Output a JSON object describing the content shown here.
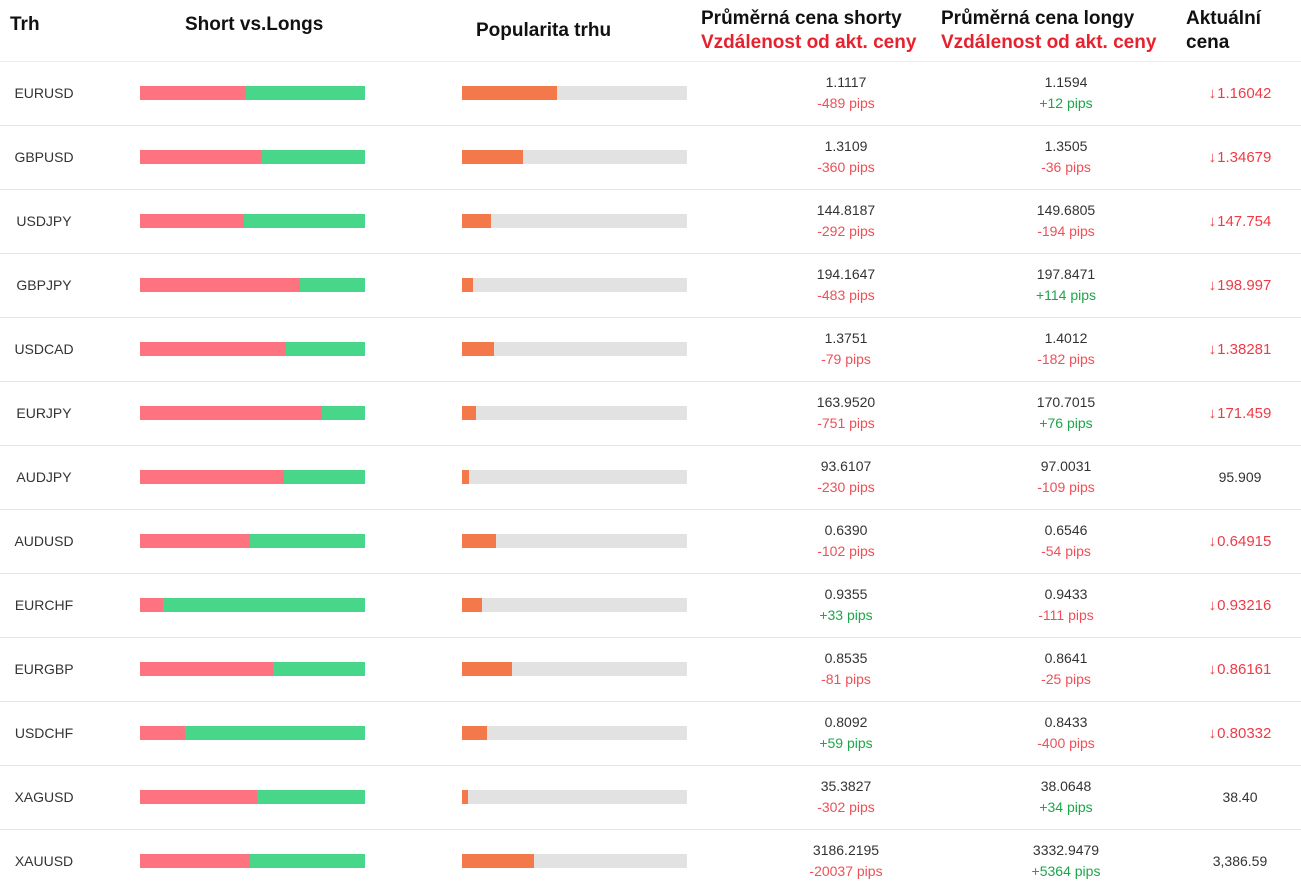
{
  "header": {
    "market": "Trh",
    "short_vs_longs": "Short vs.Longs",
    "popularity": "Popularita trhu",
    "avg_short": "Průměrná cena shorty",
    "avg_short_sub": "Vzdálenost od akt. ceny",
    "avg_long": "Průměrná cena longy",
    "avg_long_sub": "Vzdálenost od akt. ceny",
    "current_price_1": "Aktuální",
    "current_price_2": "cena"
  },
  "colors": {
    "short": "#fd737f",
    "long": "#48d78a",
    "popularity": "#f3794b",
    "popularity_track": "#e2e2e2",
    "negative": "#ef4f57",
    "positive": "#1ca64a",
    "price_down": "#ef3b46"
  },
  "rows": [
    {
      "symbol": "EURUSD",
      "short_ratio": 0.47,
      "popularity": 0.42,
      "avg_short": "1.1117",
      "short_pips": "-489 pips",
      "short_pips_sign": "neg",
      "avg_long": "1.1594",
      "long_pips": "+12 pips",
      "long_pips_sign": "pos",
      "current": "1.16042",
      "direction": "down"
    },
    {
      "symbol": "GBPUSD",
      "short_ratio": 0.54,
      "popularity": 0.27,
      "avg_short": "1.3109",
      "short_pips": "-360 pips",
      "short_pips_sign": "neg",
      "avg_long": "1.3505",
      "long_pips": "-36 pips",
      "long_pips_sign": "neg",
      "current": "1.34679",
      "direction": "down"
    },
    {
      "symbol": "USDJPY",
      "short_ratio": 0.46,
      "popularity": 0.13,
      "avg_short": "144.8187",
      "short_pips": "-292 pips",
      "short_pips_sign": "neg",
      "avg_long": "149.6805",
      "long_pips": "-194 pips",
      "long_pips_sign": "neg",
      "current": "147.754",
      "direction": "down"
    },
    {
      "symbol": "GBPJPY",
      "short_ratio": 0.71,
      "popularity": 0.05,
      "avg_short": "194.1647",
      "short_pips": "-483 pips",
      "short_pips_sign": "neg",
      "avg_long": "197.8471",
      "long_pips": "+114 pips",
      "long_pips_sign": "pos",
      "current": "198.997",
      "direction": "down"
    },
    {
      "symbol": "USDCAD",
      "short_ratio": 0.65,
      "popularity": 0.14,
      "avg_short": "1.3751",
      "short_pips": "-79 pips",
      "short_pips_sign": "neg",
      "avg_long": "1.4012",
      "long_pips": "-182 pips",
      "long_pips_sign": "neg",
      "current": "1.38281",
      "direction": "down"
    },
    {
      "symbol": "EURJPY",
      "short_ratio": 0.81,
      "popularity": 0.06,
      "avg_short": "163.9520",
      "short_pips": "-751 pips",
      "short_pips_sign": "neg",
      "avg_long": "170.7015",
      "long_pips": "+76 pips",
      "long_pips_sign": "pos",
      "current": "171.459",
      "direction": "down"
    },
    {
      "symbol": "AUDJPY",
      "short_ratio": 0.64,
      "popularity": 0.03,
      "avg_short": "93.6107",
      "short_pips": "-230 pips",
      "short_pips_sign": "neg",
      "avg_long": "97.0031",
      "long_pips": "-109 pips",
      "long_pips_sign": "neg",
      "current": "95.909",
      "direction": "flat"
    },
    {
      "symbol": "AUDUSD",
      "short_ratio": 0.49,
      "popularity": 0.15,
      "avg_short": "0.6390",
      "short_pips": "-102 pips",
      "short_pips_sign": "neg",
      "avg_long": "0.6546",
      "long_pips": "-54 pips",
      "long_pips_sign": "neg",
      "current": "0.64915",
      "direction": "down"
    },
    {
      "symbol": "EURCHF",
      "short_ratio": 0.1,
      "popularity": 0.09,
      "avg_short": "0.9355",
      "short_pips": "+33 pips",
      "short_pips_sign": "pos",
      "avg_long": "0.9433",
      "long_pips": "-111 pips",
      "long_pips_sign": "neg",
      "current": "0.93216",
      "direction": "down"
    },
    {
      "symbol": "EURGBP",
      "short_ratio": 0.59,
      "popularity": 0.22,
      "avg_short": "0.8535",
      "short_pips": "-81 pips",
      "short_pips_sign": "neg",
      "avg_long": "0.8641",
      "long_pips": "-25 pips",
      "long_pips_sign": "neg",
      "current": "0.86161",
      "direction": "down"
    },
    {
      "symbol": "USDCHF",
      "short_ratio": 0.2,
      "popularity": 0.11,
      "avg_short": "0.8092",
      "short_pips": "+59 pips",
      "short_pips_sign": "pos",
      "avg_long": "0.8433",
      "long_pips": "-400 pips",
      "long_pips_sign": "neg",
      "current": "0.80332",
      "direction": "down"
    },
    {
      "symbol": "XAGUSD",
      "short_ratio": 0.52,
      "popularity": 0.02,
      "avg_short": "35.3827",
      "short_pips": "-302 pips",
      "short_pips_sign": "neg",
      "avg_long": "38.0648",
      "long_pips": "+34 pips",
      "long_pips_sign": "pos",
      "current": "38.40",
      "direction": "flat"
    },
    {
      "symbol": "XAUUSD",
      "short_ratio": 0.49,
      "popularity": 0.32,
      "avg_short": "3186.2195",
      "short_pips": "-20037 pips",
      "short_pips_sign": "neg",
      "avg_long": "3332.9479",
      "long_pips": "+5364 pips",
      "long_pips_sign": "pos",
      "current": "3,386.59",
      "direction": "flat"
    }
  ],
  "icons": {
    "down": "arrow-down-icon"
  }
}
